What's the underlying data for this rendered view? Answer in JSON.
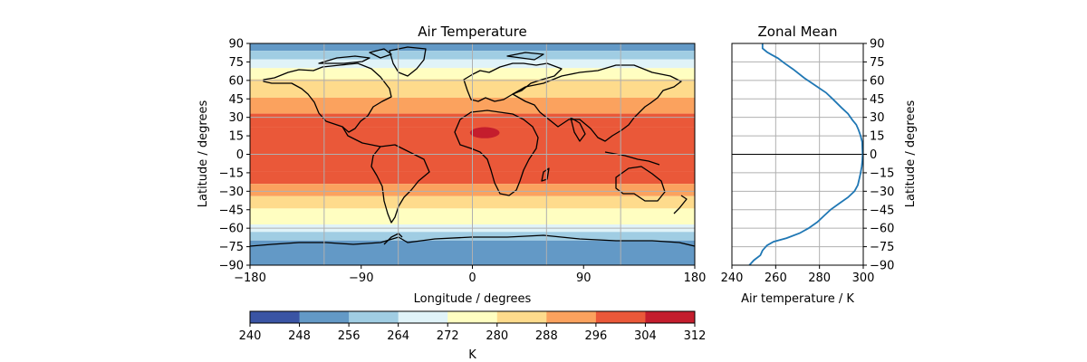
{
  "chart_data": [
    {
      "type": "heatmap",
      "title": "Air Temperature",
      "xlabel": "Longitude / degrees",
      "ylabel": "Latitude / degrees",
      "xlim": [
        -180,
        180
      ],
      "ylim": [
        -90,
        90
      ],
      "xticks": [
        "−180",
        "−90",
        "0",
        "90",
        "180"
      ],
      "xtick_values": [
        -180,
        -90,
        0,
        90,
        180
      ],
      "yticks": [
        "90",
        "75",
        "60",
        "45",
        "30",
        "15",
        "0",
        "−15",
        "−30",
        "−45",
        "−60",
        "−75",
        "−90"
      ],
      "ytick_values": [
        90,
        75,
        60,
        45,
        30,
        15,
        0,
        -15,
        -30,
        -45,
        -60,
        -75,
        -90
      ],
      "gridlines_lon": [
        -120,
        -60,
        0,
        60,
        120
      ],
      "gridlines_lat": [
        -60,
        -30,
        0,
        30,
        60
      ],
      "grid": true,
      "coastlines": true,
      "zonal_bands_k": [
        {
          "lat": [
            84,
            90
          ],
          "value": 252
        },
        {
          "lat": [
            77,
            84
          ],
          "value": 260
        },
        {
          "lat": [
            70,
            77
          ],
          "value": 268
        },
        {
          "lat": [
            61,
            70
          ],
          "value": 276
        },
        {
          "lat": [
            46,
            61
          ],
          "value": 284
        },
        {
          "lat": [
            33,
            46
          ],
          "value": 292
        },
        {
          "lat": [
            22,
            33
          ],
          "value": 298
        },
        {
          "lat": [
            -14,
            22
          ],
          "value": 300
        },
        {
          "lat": [
            -24,
            -14
          ],
          "value": 298
        },
        {
          "lat": [
            -34,
            -24
          ],
          "value": 292
        },
        {
          "lat": [
            -44,
            -34
          ],
          "value": 284
        },
        {
          "lat": [
            -57,
            -44
          ],
          "value": 276
        },
        {
          "lat": [
            -63,
            -57
          ],
          "value": 268
        },
        {
          "lat": [
            -70,
            -63
          ],
          "value": 260
        },
        {
          "lat": [
            -90,
            -70
          ],
          "value": 252
        }
      ],
      "hot_spot_k": {
        "lon": [
          -2,
          22
        ],
        "lat": [
          13,
          22
        ],
        "value": 308
      }
    },
    {
      "type": "line",
      "title": "Zonal Mean",
      "xlabel": "Air temperature / K",
      "ylabel": "Latitude / degrees",
      "xlim": [
        240,
        300
      ],
      "ylim": [
        -90,
        90
      ],
      "xticks": [
        "240",
        "260",
        "280",
        "300"
      ],
      "xtick_values": [
        240,
        260,
        280,
        300
      ],
      "yticks": [
        "90",
        "75",
        "60",
        "45",
        "30",
        "15",
        "0",
        "−15",
        "−30",
        "−45",
        "−60",
        "−75",
        "−90"
      ],
      "ytick_values": [
        90,
        75,
        60,
        45,
        30,
        15,
        0,
        -15,
        -30,
        -45,
        -60,
        -75,
        -90
      ],
      "grid": true,
      "zero_line": 0,
      "series": [
        {
          "color": "#1f77b4",
          "points": [
            [
              254,
              90
            ],
            [
              254,
              86
            ],
            [
              256,
              83
            ],
            [
              258,
              81
            ],
            [
              261,
              78
            ],
            [
              264,
              74
            ],
            [
              268,
              69
            ],
            [
              273,
              62
            ],
            [
              278,
              56
            ],
            [
              283,
              50
            ],
            [
              286,
              45
            ],
            [
              290,
              38
            ],
            [
              293,
              33
            ],
            [
              295,
              28
            ],
            [
              296.8,
              24
            ],
            [
              297.8,
              20
            ],
            [
              298.8,
              15
            ],
            [
              299.5,
              10
            ],
            [
              299.6,
              5
            ],
            [
              299.7,
              0
            ],
            [
              299.6,
              -5
            ],
            [
              299.3,
              -10
            ],
            [
              298.8,
              -15
            ],
            [
              298.2,
              -20
            ],
            [
              297.5,
              -25
            ],
            [
              296,
              -30
            ],
            [
              293,
              -35
            ],
            [
              289,
              -40
            ],
            [
              285,
              -45
            ],
            [
              282,
              -50
            ],
            [
              279,
              -55
            ],
            [
              275,
              -60
            ],
            [
              271,
              -64
            ],
            [
              265,
              -68
            ],
            [
              259,
              -71
            ],
            [
              256,
              -74
            ],
            [
              254,
              -78
            ],
            [
              253,
              -82
            ],
            [
              250,
              -86
            ],
            [
              248,
              -90
            ]
          ]
        }
      ]
    },
    {
      "type": "colorbar",
      "label": "K",
      "levels": [
        240,
        248,
        256,
        264,
        272,
        280,
        288,
        296,
        304,
        312
      ],
      "tick_labels": [
        "240",
        "248",
        "256",
        "264",
        "272",
        "280",
        "288",
        "296",
        "304",
        "312"
      ],
      "colors": [
        "#3a54a4",
        "#6399c6",
        "#a0cde3",
        "#e0f3f8",
        "#fffec1",
        "#fedb8c",
        "#fba25e",
        "#ea5839",
        "#c41d2d"
      ]
    }
  ]
}
